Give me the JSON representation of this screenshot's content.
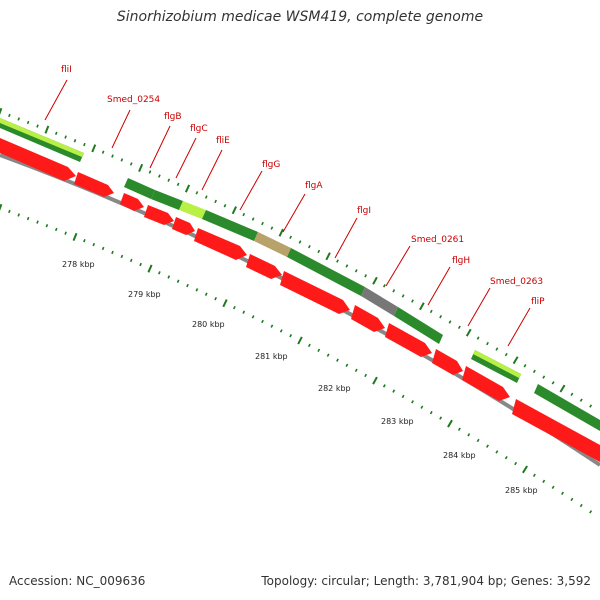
{
  "title": "Sinorhizobium medicae WSM419, complete genome",
  "accession": "Accession: NC_009636",
  "summary": "Topology: circular; Length: 3,781,904 bp; Genes: 3,592",
  "colors": {
    "gene_label": "#cc0000",
    "cds": "#ff1a1a",
    "track_dark_green": "#2b8a2b",
    "track_light_green": "#b8f046",
    "track_tan": "#b7a36a",
    "track_gray": "#777777",
    "backbone": "#888888",
    "tick_green": "#1f7a1f"
  },
  "gene_labels": [
    "fliI",
    "Smed_0254",
    "flgB",
    "flgC",
    "fliE",
    "flgG",
    "flgA",
    "flgI",
    "Smed_0261",
    "flgH",
    "Smed_0263",
    "fliP"
  ],
  "kbp_labels": [
    "278 kbp",
    "279 kbp",
    "280 kbp",
    "281 kbp",
    "282 kbp",
    "283 kbp",
    "284 kbp",
    "285 kbp"
  ]
}
